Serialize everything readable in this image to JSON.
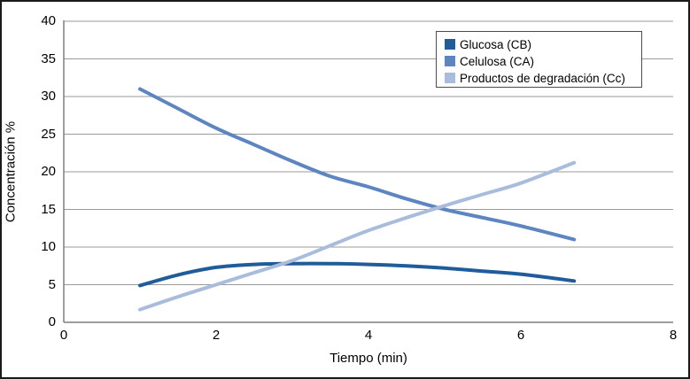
{
  "chart_data": {
    "type": "line",
    "title": "",
    "xlabel": "Tiempo (min)",
    "ylabel": "Concentración %",
    "xlim": [
      0,
      8
    ],
    "ylim": [
      0,
      40
    ],
    "x_ticks": [
      0,
      2,
      4,
      6,
      8
    ],
    "y_ticks": [
      0,
      5,
      10,
      15,
      20,
      25,
      30,
      35,
      40
    ],
    "grid": "horizontal-only",
    "legend_position": "top-right-inside",
    "gridline_color": "#9a9a9a",
    "axis_color": "#7f7f7f",
    "x": [
      1,
      1.5,
      2,
      2.5,
      3,
      3.5,
      4,
      4.5,
      5,
      5.5,
      6,
      6.7
    ],
    "series": [
      {
        "name": "Glucosa (CB)",
        "color": "#1f5c99",
        "values": [
          4.9,
          6.3,
          7.3,
          7.7,
          7.8,
          7.8,
          7.7,
          7.5,
          7.2,
          6.8,
          6.4,
          5.5
        ]
      },
      {
        "name": "Celulosa (CA)",
        "color": "#5c85c1",
        "values": [
          31.0,
          28.4,
          25.8,
          23.6,
          21.4,
          19.4,
          18.0,
          16.4,
          15.0,
          13.9,
          12.8,
          11.0
        ]
      },
      {
        "name": "Productos de degradación (Cc)",
        "color": "#a9bcdc",
        "values": [
          1.7,
          3.4,
          5.0,
          6.6,
          8.2,
          10.2,
          12.2,
          13.9,
          15.5,
          17.0,
          18.5,
          21.2
        ]
      }
    ]
  }
}
